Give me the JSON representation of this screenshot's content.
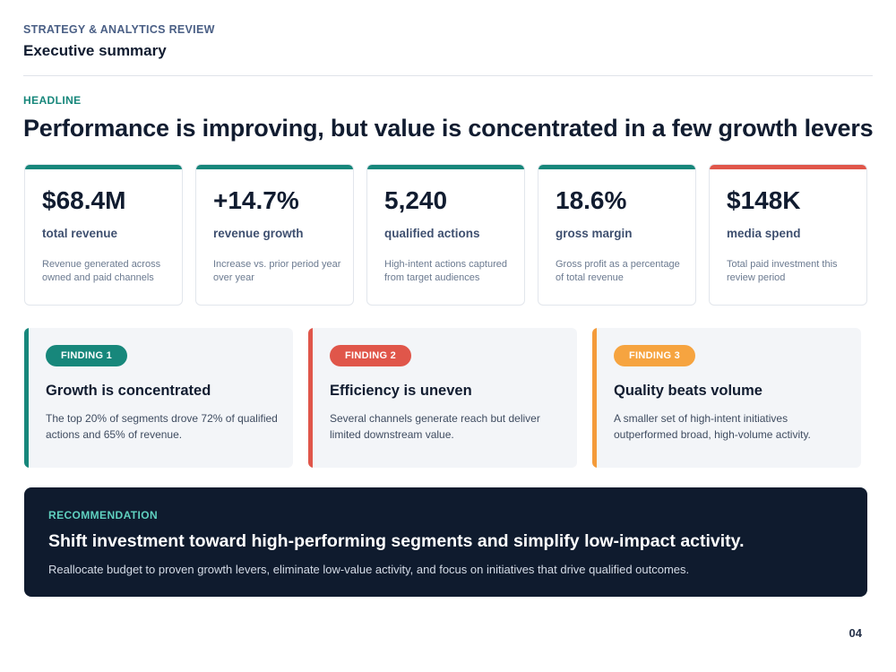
{
  "header": {
    "eyebrow": "STRATEGY & ANALYTICS REVIEW",
    "subtitle": "Executive summary"
  },
  "headline": {
    "label": "HEADLINE",
    "text": "Performance is improving, but value is concentrated in a few growth levers"
  },
  "kpis": [
    {
      "value": "$68.4M",
      "label": "total revenue",
      "description": "Revenue generated across owned and paid channels",
      "accent": "#17877b"
    },
    {
      "value": "+14.7%",
      "label": "revenue growth",
      "description": "Increase vs. prior period year over year",
      "accent": "#17877b"
    },
    {
      "value": "5,240",
      "label": "qualified actions",
      "description": "High-intent actions captured from target audiences",
      "accent": "#17877b"
    },
    {
      "value": "18.6%",
      "label": "gross margin",
      "description": "Gross profit as a percentage of total revenue",
      "accent": "#17877b"
    },
    {
      "value": "$148K",
      "label": "media spend",
      "description": "Total paid investment this review period",
      "accent": "#e0564a"
    }
  ],
  "findings": [
    {
      "tag": "FINDING 1",
      "title": "Growth is concentrated",
      "body": "The top 20% of segments drove 72% of qualified actions and 65% of revenue.",
      "accent": "#17877b",
      "pill_bg": "#17877b",
      "pill_color": "#ffffff"
    },
    {
      "tag": "FINDING 2",
      "title": "Efficiency is uneven",
      "body": "Several channels generate reach but deliver limited downstream value.",
      "accent": "#e0564a",
      "pill_bg": "#e0564a",
      "pill_color": "#ffffff"
    },
    {
      "tag": "FINDING 3",
      "title": "Quality beats volume",
      "body": "A smaller set of high-intent initiatives outperformed broad, high-volume activity.",
      "accent": "#f49b3a",
      "pill_bg": "#f6a440",
      "pill_color": "#ffffff"
    }
  ],
  "recommendation": {
    "label": "RECOMMENDATION",
    "title": "Shift investment toward high-performing segments and simplify low-impact activity.",
    "body": "Reallocate budget to proven growth levers, eliminate low-value activity, and focus on initiatives that drive qualified outcomes."
  },
  "page_number": "04"
}
